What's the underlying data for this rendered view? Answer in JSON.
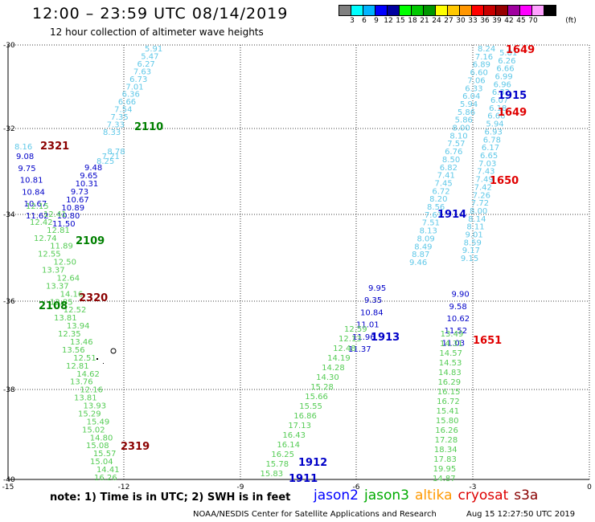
{
  "header": {
    "title": "12:00 – 23:59 UTC 08/14/2019",
    "subtitle": "12 hour collection of altimeter wave heights"
  },
  "legend": {
    "unit_label": "(ft)",
    "colors": [
      "#808080",
      "#00ffff",
      "#00b4ff",
      "#0000ff",
      "#0000a0",
      "#00ff00",
      "#00c800",
      "#009600",
      "#ffff00",
      "#ffc800",
      "#ff9600",
      "#ff0000",
      "#c80000",
      "#960000",
      "#a000a0",
      "#ff00ff",
      "#ffa0ff",
      "#000000"
    ],
    "ticks": [
      "3",
      "6",
      "9",
      "12",
      "15",
      "18",
      "21",
      "24",
      "27",
      "30",
      "33",
      "36",
      "39",
      "42",
      "45",
      "70"
    ]
  },
  "axes": {
    "lat_labels": [
      "-30",
      "-32",
      "-34",
      "-36",
      "-38",
      "-40"
    ],
    "lon_labels": [
      "-15",
      "-12",
      "-9",
      "-6",
      "-3",
      "0"
    ]
  },
  "tracks": [
    {
      "name": "west-track",
      "color": "#5fc8e8",
      "points": [
        "5.91",
        "5.47",
        "6.27",
        "7.63",
        "6.73",
        "7.01",
        "6.36",
        "6.66",
        "7.54",
        "7.35",
        "7.33",
        "8.33"
      ]
    },
    {
      "name": "west-track-b",
      "color": "#0000c8",
      "points": [
        "9.48",
        "9.65",
        "10.31",
        "9.73",
        "10.67",
        "10.89",
        "10.80",
        "11.50"
      ]
    },
    {
      "name": "west-side",
      "color": "#0000c8",
      "points": [
        "9.08",
        "9.75",
        "10.81",
        "10.84",
        "10.67",
        "11.62"
      ]
    },
    {
      "name": "west-green",
      "color": "#55cc55",
      "points": [
        "12.15",
        "12.41",
        "12.42",
        "12.81",
        "12.74",
        "11.89",
        "12.55",
        "12.50",
        "13.37",
        "12.64",
        "13.37",
        "14.16",
        "12.85",
        "12.52",
        "13.81",
        "13.94",
        "12.35",
        "13.46",
        "13.56",
        "12.51",
        "12.81",
        "14.62",
        "13.76",
        "12.16",
        "13.81",
        "13.93",
        "15.29",
        "15.49",
        "15.02",
        "14.80",
        "15.08",
        "15.57",
        "15.04",
        "14.41",
        "16.26"
      ]
    },
    {
      "name": "east-track",
      "color": "#5fc8e8",
      "points": [
        "8.24",
        "5.81",
        "7.16",
        "6.26",
        "6.89",
        "6.66",
        "6.60",
        "6.99",
        "7.06",
        "6.96",
        "6.33",
        "6.32",
        "6.04",
        "6.07",
        "5.94",
        "6.18",
        "5.86",
        "6.66",
        "5.86",
        "5.94",
        "8.00",
        "6.93",
        "8.10",
        "6.78",
        "7.57",
        "6.17",
        "6.76",
        "6.65",
        "8.50",
        "7.03",
        "6.82",
        "7.43",
        "7.41",
        "7.49",
        "7.45",
        "7.42",
        "6.72",
        "7.26",
        "8.20",
        "7.72",
        "8.56",
        "8.00",
        "7.61",
        "8.14",
        "7.51",
        "8.11",
        "8.13",
        "9.01",
        "8.09",
        "8.59",
        "8.49",
        "9.17",
        "8.87",
        "9.15",
        "9.46"
      ]
    },
    {
      "name": "east-blue",
      "color": "#0000c8",
      "points": [
        "9.95",
        "9.90",
        "9.35",
        "9.58",
        "10.84",
        "10.62",
        "11.01",
        "11.52",
        "11.96",
        "11.03",
        "11.37"
      ]
    },
    {
      "name": "east-green",
      "color": "#55cc55",
      "points": [
        "12.59",
        "13.49",
        "12.13",
        "14.31",
        "12.48",
        "14.57",
        "14.19",
        "14.53",
        "14.28",
        "14.83",
        "14.30",
        "16.29",
        "15.28",
        "16.15",
        "15.66",
        "16.72",
        "15.55",
        "15.41",
        "16.86",
        "15.80",
        "17.13",
        "16.26",
        "16.43",
        "17.28",
        "16.14",
        "18.34",
        "16.25",
        "17.83",
        "15.78",
        "19.95",
        "15.83",
        "14.87"
      ]
    },
    {
      "name": "track-8.16",
      "color": "#5fc8e8",
      "points": [
        "8.16",
        "8.78",
        "7.21",
        "8.25"
      ]
    }
  ],
  "time_labels": [
    {
      "text": "1649",
      "color": "#e00000"
    },
    {
      "text": "1915",
      "color": "#0000c8"
    },
    {
      "text": "1649",
      "color": "#e00000"
    },
    {
      "text": "2110",
      "color": "#008000"
    },
    {
      "text": "2321",
      "color": "#8b0000"
    },
    {
      "text": "1650",
      "color": "#e00000"
    },
    {
      "text": "1914",
      "color": "#0000c8"
    },
    {
      "text": "2109",
      "color": "#008000"
    },
    {
      "text": "2320",
      "color": "#8b0000"
    },
    {
      "text": "2108",
      "color": "#008000"
    },
    {
      "text": "1913",
      "color": "#0000c8"
    },
    {
      "text": "1651",
      "color": "#e00000"
    },
    {
      "text": "2319",
      "color": "#8b0000"
    },
    {
      "text": "1912",
      "color": "#0000c8"
    },
    {
      "text": "1911",
      "color": "#0000c8"
    }
  ],
  "footer": {
    "note": "note:  1) Time is in UTC;  2) SWH is in feet",
    "satellites": [
      {
        "name": "jason2",
        "color": "#0000ff"
      },
      {
        "name": "jason3",
        "color": "#00aa00"
      },
      {
        "name": "altika",
        "color": "#ff9900"
      },
      {
        "name": "cryosat",
        "color": "#dd0000"
      },
      {
        "name": "s3a",
        "color": "#880000"
      }
    ],
    "credit": "NOAA/NESDIS Center for Satellite Applications and Research",
    "timestamp": "Aug 15 12:27:50 UTC 2019"
  }
}
